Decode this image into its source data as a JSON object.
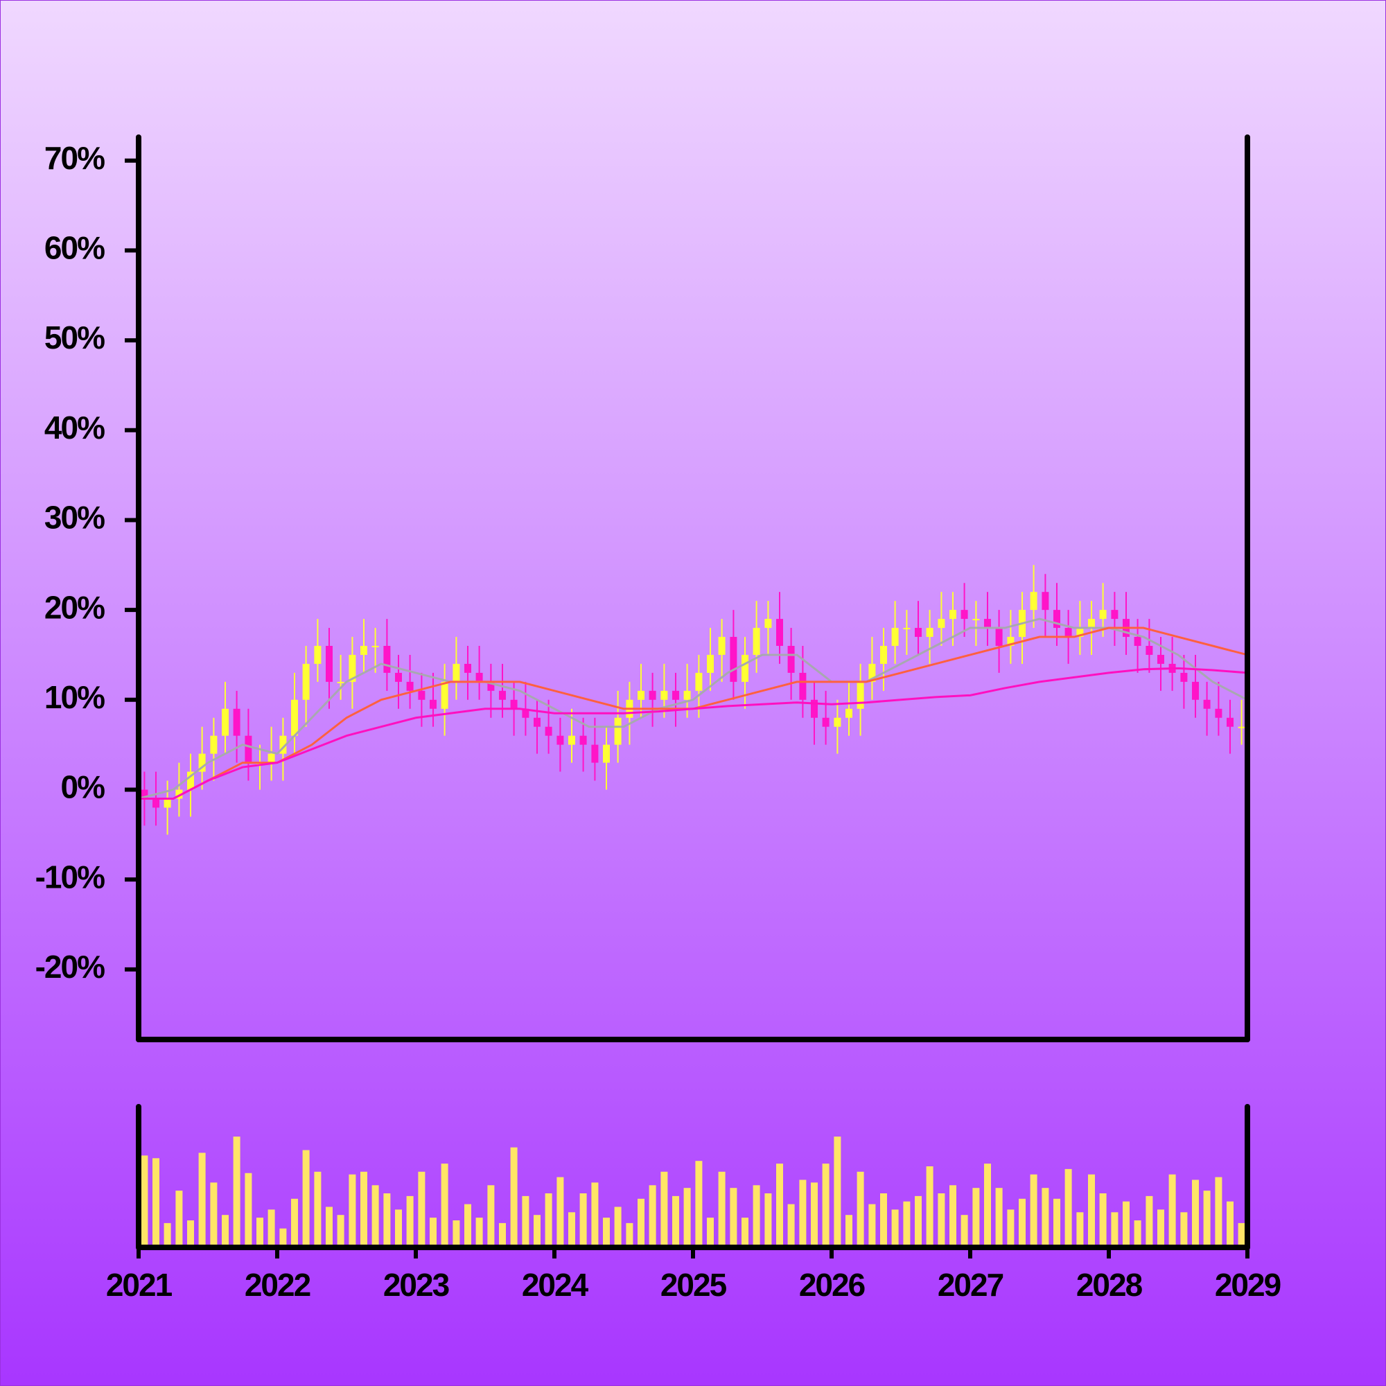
{
  "chart_data": {
    "type": "candlestick",
    "xlim": [
      2021,
      2029
    ],
    "xticks": [
      2021,
      2022,
      2023,
      2024,
      2025,
      2026,
      2027,
      2028,
      2029
    ],
    "ylim": [
      -27.8,
      72.6
    ],
    "yticks": [
      {
        "value": -20,
        "label": "-20%"
      },
      {
        "value": -10,
        "label": "-10%"
      },
      {
        "value": 0,
        "label": "0%"
      },
      {
        "value": 10,
        "label": "10%"
      },
      {
        "value": 20,
        "label": "20%"
      },
      {
        "value": 30,
        "label": "30%"
      },
      {
        "value": 40,
        "label": "40%"
      },
      {
        "value": 50,
        "label": "50%"
      },
      {
        "value": 60,
        "label": "60%"
      },
      {
        "value": 70,
        "label": "70%"
      }
    ],
    "up_color": "#ffff33",
    "down_color": "#ff14c8",
    "x": [
      2021.042,
      2021.125,
      2021.208,
      2021.292,
      2021.375,
      2021.458,
      2021.542,
      2021.625,
      2021.708,
      2021.792,
      2021.875,
      2021.958,
      2022.042,
      2022.125,
      2022.208,
      2022.292,
      2022.375,
      2022.458,
      2022.542,
      2022.625,
      2022.708,
      2022.792,
      2022.875,
      2022.958,
      2023.042,
      2023.125,
      2023.208,
      2023.292,
      2023.375,
      2023.458,
      2023.542,
      2023.625,
      2023.708,
      2023.792,
      2023.875,
      2023.958,
      2024.042,
      2024.125,
      2024.208,
      2024.292,
      2024.375,
      2024.458,
      2024.542,
      2024.625,
      2024.708,
      2024.792,
      2024.875,
      2024.958,
      2025.042,
      2025.125,
      2025.208,
      2025.292,
      2025.375,
      2025.458,
      2025.542,
      2025.625,
      2025.708,
      2025.792,
      2025.875,
      2025.958,
      2026.042,
      2026.125,
      2026.208,
      2026.292,
      2026.375,
      2026.458,
      2026.542,
      2026.625,
      2026.708,
      2026.792,
      2026.875,
      2026.958,
      2027.042,
      2027.125,
      2027.208,
      2027.292,
      2027.375,
      2027.458,
      2027.542,
      2027.625,
      2027.708,
      2027.792,
      2027.875,
      2027.958,
      2028.042,
      2028.125,
      2028.208,
      2028.292,
      2028.375,
      2028.458,
      2028.542,
      2028.625,
      2028.708,
      2028.792,
      2028.875,
      2028.958
    ],
    "open": [
      0,
      -1,
      -2,
      -1,
      0,
      2,
      4,
      6,
      9,
      6,
      3,
      3,
      4,
      6,
      10,
      14,
      16,
      12,
      12,
      15,
      16,
      16,
      13,
      12,
      11,
      10,
      9,
      12,
      14,
      13,
      12,
      11,
      10,
      9,
      8,
      7,
      6,
      5,
      6,
      5,
      3,
      5,
      8,
      10,
      11,
      10,
      11,
      10,
      11,
      13,
      15,
      17,
      12,
      15,
      18,
      19,
      16,
      13,
      10,
      8,
      7,
      8,
      9,
      12,
      14,
      16,
      18,
      18,
      17,
      18,
      19,
      20,
      19,
      19,
      18,
      16,
      17,
      20,
      22,
      20,
      18,
      17,
      18,
      19,
      20,
      19,
      17,
      16,
      15,
      14,
      13,
      12,
      10,
      9,
      8,
      7
    ],
    "high": [
      2,
      2,
      1,
      3,
      4,
      7,
      8,
      12,
      11,
      9,
      5,
      7,
      8,
      13,
      16,
      19,
      18,
      15,
      17,
      19,
      18,
      19,
      15,
      15,
      13,
      13,
      14,
      17,
      16,
      16,
      14,
      14,
      12,
      12,
      10,
      10,
      8,
      9,
      8,
      8,
      7,
      11,
      12,
      14,
      13,
      14,
      13,
      14,
      15,
      18,
      19,
      20,
      17,
      21,
      21,
      22,
      18,
      16,
      12,
      11,
      10,
      12,
      14,
      17,
      18,
      21,
      20,
      21,
      20,
      22,
      22,
      23,
      21,
      22,
      20,
      20,
      22,
      25,
      24,
      23,
      20,
      21,
      21,
      23,
      22,
      22,
      19,
      19,
      17,
      17,
      15,
      15,
      12,
      12,
      10,
      10
    ],
    "low": [
      -4,
      -4,
      -5,
      -3,
      -3,
      0,
      1,
      4,
      3,
      1,
      0,
      1,
      1,
      4,
      7,
      12,
      9,
      10,
      9,
      13,
      13,
      11,
      9,
      9,
      7,
      7,
      6,
      10,
      10,
      10,
      8,
      8,
      6,
      6,
      4,
      4,
      2,
      3,
      2,
      1,
      0,
      3,
      5,
      8,
      7,
      8,
      7,
      8,
      8,
      11,
      12,
      10,
      9,
      13,
      15,
      14,
      10,
      8,
      5,
      5,
      4,
      6,
      6,
      10,
      11,
      14,
      15,
      15,
      14,
      16,
      16,
      17,
      16,
      16,
      13,
      14,
      14,
      18,
      17,
      16,
      14,
      15,
      15,
      17,
      16,
      15,
      13,
      13,
      11,
      11,
      9,
      8,
      6,
      6,
      4,
      5
    ],
    "close": [
      -1,
      -2,
      -1,
      0,
      2,
      4,
      6,
      9,
      6,
      3,
      3,
      4,
      6,
      10,
      14,
      16,
      12,
      12,
      15,
      16,
      16,
      13,
      12,
      11,
      10,
      9,
      12,
      14,
      13,
      12,
      11,
      10,
      9,
      8,
      7,
      6,
      5,
      6,
      5,
      3,
      5,
      8,
      10,
      11,
      10,
      11,
      10,
      11,
      13,
      15,
      17,
      12,
      15,
      18,
      19,
      16,
      13,
      10,
      8,
      7,
      8,
      9,
      12,
      14,
      16,
      18,
      18,
      17,
      18,
      19,
      20,
      19,
      19,
      18,
      16,
      17,
      20,
      22,
      20,
      18,
      17,
      18,
      19,
      20,
      19,
      17,
      16,
      15,
      14,
      13,
      12,
      10,
      9,
      8,
      7,
      7
    ],
    "lines": [
      {
        "color": "#a8a8b0",
        "x": [
          2021,
          2021.25,
          2021.5,
          2021.75,
          2022,
          2022.25,
          2022.5,
          2022.75,
          2023,
          2023.25,
          2023.5,
          2023.75,
          2024,
          2024.25,
          2024.5,
          2024.75,
          2025,
          2025.25,
          2025.5,
          2025.75,
          2026,
          2026.25,
          2026.5,
          2026.75,
          2027,
          2027.25,
          2027.5,
          2027.75,
          2028,
          2028.25,
          2028.5,
          2028.75,
          2029
        ],
        "values": [
          -1,
          0,
          3,
          5,
          4,
          8,
          12,
          14,
          13,
          12,
          12,
          11,
          9,
          7,
          7,
          9,
          10,
          13,
          15,
          15,
          12,
          12,
          14,
          16,
          18,
          18,
          19,
          18,
          18,
          17,
          15,
          12,
          10
        ]
      },
      {
        "color": "#ff6040",
        "x": [
          2021,
          2021.25,
          2021.5,
          2021.75,
          2022,
          2022.25,
          2022.5,
          2022.75,
          2023,
          2023.25,
          2023.5,
          2023.75,
          2024,
          2024.25,
          2024.5,
          2024.75,
          2025,
          2025.25,
          2025.5,
          2025.75,
          2026,
          2026.25,
          2026.5,
          2026.75,
          2027,
          2027.25,
          2027.5,
          2027.75,
          2028,
          2028.25,
          2028.5,
          2028.75,
          2029
        ],
        "values": [
          -1,
          -1,
          1,
          3,
          3,
          5,
          8,
          10,
          11,
          12,
          12,
          12,
          11,
          10,
          9,
          9,
          9,
          10,
          11,
          12,
          12,
          12,
          13,
          14,
          15,
          16,
          17,
          17,
          18,
          18,
          17,
          16,
          15
        ]
      },
      {
        "color": "#ff10c0",
        "x": [
          2021,
          2021.25,
          2021.5,
          2021.75,
          2022,
          2022.25,
          2022.5,
          2022.75,
          2023,
          2023.25,
          2023.5,
          2023.75,
          2024,
          2024.25,
          2024.5,
          2024.75,
          2025,
          2025.25,
          2025.5,
          2025.75,
          2026,
          2026.25,
          2026.5,
          2026.75,
          2027,
          2027.25,
          2027.5,
          2027.75,
          2028,
          2028.25,
          2028.5,
          2028.75,
          2029
        ],
        "values": [
          -1,
          -1,
          1,
          2.5,
          3,
          4.5,
          6,
          7,
          8,
          8.5,
          9,
          9,
          8.5,
          8.5,
          8.5,
          8.7,
          9,
          9.3,
          9.5,
          9.7,
          9.5,
          9.7,
          10,
          10.3,
          10.5,
          11.3,
          12,
          12.5,
          13,
          13.4,
          13.5,
          13.3,
          13
        ]
      }
    ],
    "volume": {
      "color": "#ffe566",
      "ylim": [
        0,
        100
      ],
      "values": [
        68,
        66,
        18,
        42,
        20,
        70,
        48,
        24,
        82,
        55,
        22,
        28,
        14,
        36,
        72,
        56,
        30,
        24,
        54,
        56,
        46,
        40,
        28,
        38,
        56,
        22,
        62,
        20,
        32,
        22,
        46,
        18,
        74,
        38,
        24,
        40,
        52,
        26,
        40,
        48,
        22,
        30,
        18,
        36,
        46,
        56,
        38,
        44,
        64,
        22,
        56,
        44,
        22,
        46,
        40,
        62,
        32,
        50,
        48,
        62,
        82,
        24,
        56,
        32,
        40,
        28,
        34,
        38,
        60,
        40,
        46,
        24,
        44,
        62,
        44,
        28,
        36,
        54,
        44,
        36,
        58,
        26,
        54,
        40,
        26,
        34,
        20,
        38,
        28,
        54,
        26,
        50,
        42,
        52,
        34,
        18
      ]
    }
  }
}
